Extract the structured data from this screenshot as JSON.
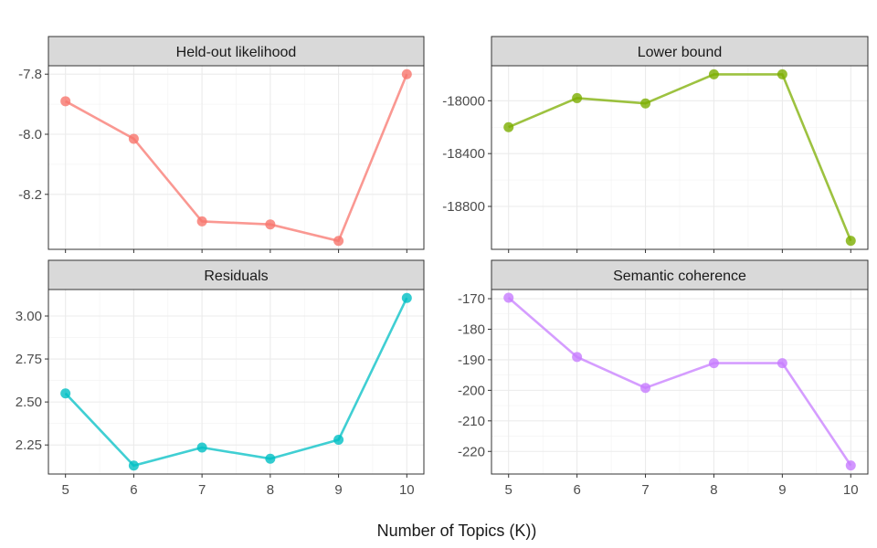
{
  "xlabel": "Number of Topics (K))",
  "chart_data": [
    {
      "type": "line",
      "title": "Held-out likelihood",
      "x": [
        5,
        6,
        7,
        8,
        9,
        10
      ],
      "values": [
        -7.89,
        -8.015,
        -8.29,
        -8.3,
        -8.355,
        -7.8
      ],
      "xticks": [
        "5",
        "6",
        "7",
        "8",
        "9",
        "10"
      ],
      "yticks": [
        -7.8,
        -8.0,
        -8.2
      ],
      "ytick_labels": [
        "-7.8",
        "-8.0",
        "-8.2"
      ],
      "xlim": [
        4.75,
        10.25
      ],
      "ylim": [
        -8.383,
        -7.772
      ],
      "color": "#F8766D",
      "grid": true
    },
    {
      "type": "line",
      "title": "Lower bound",
      "x": [
        5,
        6,
        7,
        8,
        9,
        10
      ],
      "values": [
        -18200,
        -17980,
        -18020,
        -17800,
        -17800,
        -19060
      ],
      "xticks": [
        "5",
        "6",
        "7",
        "8",
        "9",
        "10"
      ],
      "yticks": [
        -18000,
        -18400,
        -18800
      ],
      "ytick_labels": [
        "-18000",
        "-18400",
        "-18800"
      ],
      "xlim": [
        4.75,
        10.25
      ],
      "ylim": [
        -19125,
        -17735
      ],
      "color": "#7CAE00",
      "grid": true
    },
    {
      "type": "line",
      "title": "Residuals",
      "x": [
        5,
        6,
        7,
        8,
        9,
        10
      ],
      "values": [
        2.55,
        2.13,
        2.235,
        2.17,
        2.28,
        3.105
      ],
      "xticks": [
        "5",
        "6",
        "7",
        "8",
        "9",
        "10"
      ],
      "yticks": [
        2.25,
        2.5,
        2.75,
        3.0
      ],
      "ytick_labels": [
        "2.25",
        "2.50",
        "2.75",
        "3.00"
      ],
      "xlim": [
        4.75,
        10.25
      ],
      "ylim": [
        2.081,
        3.154
      ],
      "color": "#00BFC4",
      "grid": true
    },
    {
      "type": "line",
      "title": "Semantic coherence",
      "x": [
        5,
        6,
        7,
        8,
        9,
        10
      ],
      "values": [
        -169.7,
        -189.1,
        -199.2,
        -191.1,
        -191.1,
        -224.6
      ],
      "xticks": [
        "5",
        "6",
        "7",
        "8",
        "9",
        "10"
      ],
      "yticks": [
        -170,
        -180,
        -190,
        -200,
        -210,
        -220
      ],
      "ytick_labels": [
        "-170",
        "-180",
        "-190",
        "-200",
        "-210",
        "-220"
      ],
      "xlim": [
        4.75,
        10.25
      ],
      "ylim": [
        -227.4,
        -167.0
      ],
      "color": "#C77CFF",
      "grid": true
    }
  ]
}
